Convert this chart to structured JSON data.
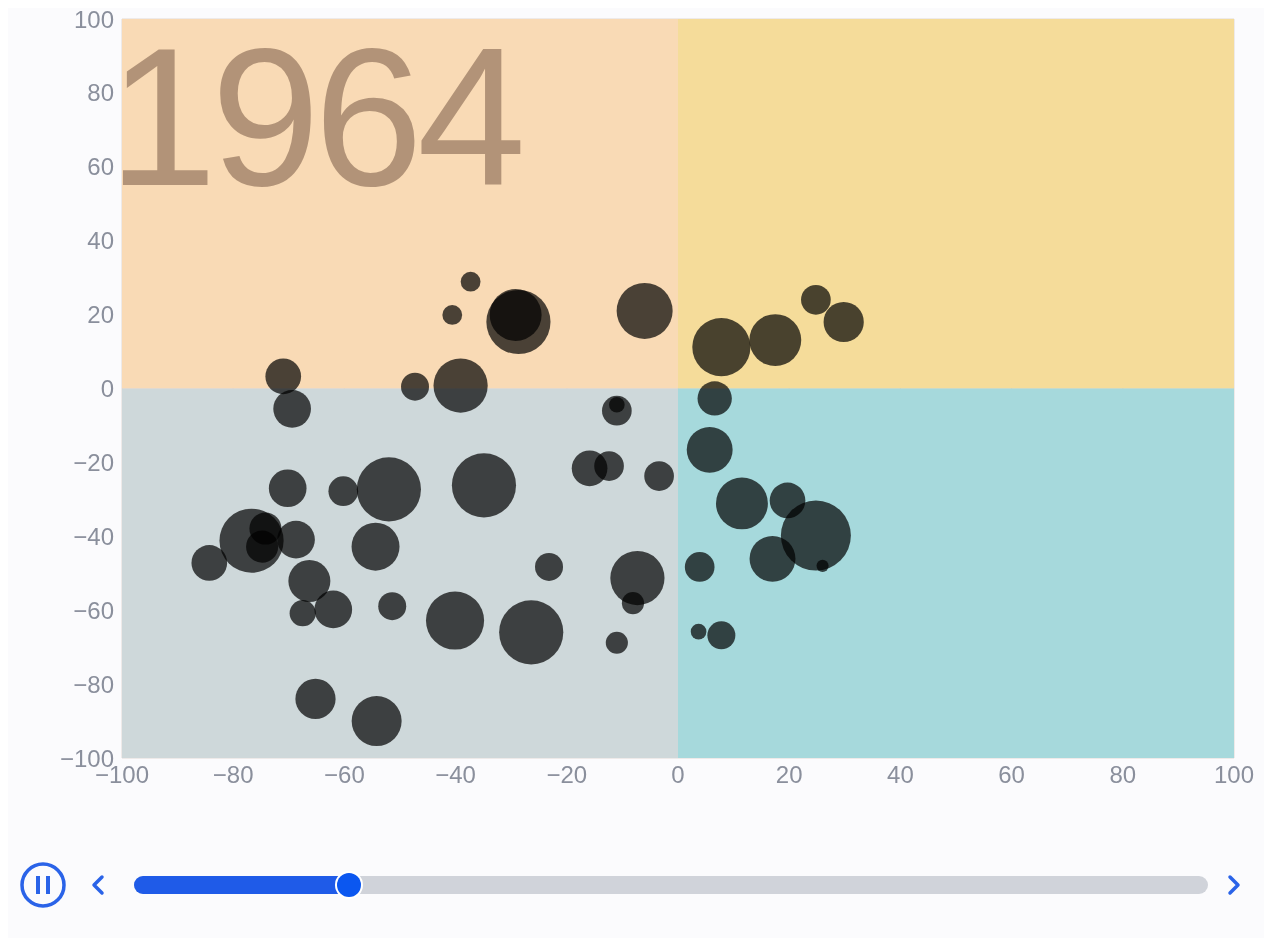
{
  "chart_data": {
    "type": "bubble",
    "annotations": [
      "1964"
    ],
    "x": [
      -37.3,
      -40.6,
      -28.7,
      -29.2,
      -6.0,
      -71.0,
      -47.3,
      -39.1,
      -69.4,
      -11.0,
      -11.0,
      -15.9,
      -12.4,
      -3.4,
      -70.2,
      -60.2,
      -52.0,
      -34.9,
      -76.7,
      -74.2,
      -74.8,
      -68.7,
      -84.3,
      -54.4,
      -66.3,
      -67.5,
      -62.0,
      -51.4,
      -40.1,
      -26.4,
      -23.2,
      -7.3,
      -8.1,
      -11.0,
      -65.2,
      -54.2,
      7.8,
      17.5,
      24.8,
      29.8,
      6.6,
      5.7,
      11.5,
      19.7,
      24.8,
      17.0,
      3.9,
      26.0,
      3.7,
      7.8
    ],
    "series": [
      {
        "color": "#000000",
        "values": [
          28.9,
          19.9,
          18.0,
          19.9,
          21.0,
          3.3,
          0.5,
          0.8,
          -5.5,
          -6.0,
          -4.4,
          -21.6,
          -21.0,
          -23.7,
          -27.0,
          -27.8,
          -27.3,
          -26.2,
          -41.2,
          -37.9,
          -42.8,
          -40.9,
          -47.2,
          -42.8,
          -52.1,
          -60.8,
          -59.8,
          -58.9,
          -62.8,
          -66.0,
          -48.3,
          -51.3,
          -58.1,
          -68.8,
          -84.0,
          -90.0,
          11.2,
          13.1,
          24.0,
          18.0,
          -2.7,
          -16.6,
          -31.1,
          -30.3,
          -39.8,
          -46.1,
          -48.3,
          -48.0,
          -65.8,
          -66.8
        ],
        "sizes": [
          0.08,
          0.08,
          0.84,
          0.55,
          0.64,
          0.26,
          0.16,
          0.6,
          0.29,
          0.18,
          0.05,
          0.26,
          0.18,
          0.18,
          0.29,
          0.18,
          0.84,
          0.84,
          0.84,
          0.21,
          0.21,
          0.29,
          0.26,
          0.47,
          0.36,
          0.14,
          0.29,
          0.16,
          0.69,
          0.84,
          0.16,
          0.6,
          0.1,
          0.1,
          0.33,
          0.51,
          0.69,
          0.55,
          0.18,
          0.33,
          0.24,
          0.43,
          0.55,
          0.26,
          1,
          0.43,
          0.18,
          0.03,
          0.05,
          0.16
        ]
      }
    ],
    "xlim": [
      -100,
      100
    ],
    "xticks": [
      {
        "value": -100,
        "label": "−100"
      },
      {
        "value": -80,
        "label": "−80"
      },
      {
        "value": -60,
        "label": "−60"
      },
      {
        "value": -40,
        "label": "−40"
      },
      {
        "value": -20,
        "label": "−20"
      },
      0,
      20,
      40,
      60,
      80,
      100
    ],
    "ylim": [
      -100,
      100
    ],
    "yticks": [
      {
        "value": -100,
        "label": "−100"
      },
      {
        "value": -80,
        "label": "−80"
      },
      {
        "value": -60,
        "label": "−60"
      },
      {
        "value": -40,
        "label": "−40"
      },
      {
        "value": -20,
        "label": "−20"
      },
      0,
      20,
      40,
      60,
      80,
      100
    ],
    "bands": [
      {
        "axis": "y",
        "from": 0,
        "to": 100,
        "color": "#f5dc9a"
      },
      {
        "axis": "y",
        "from": -100,
        "to": 0,
        "color": "#a6d9dc"
      },
      {
        "axis": "x",
        "from": -100,
        "to": 0,
        "color": "#ffd8d8"
      }
    ],
    "grid": true,
    "marker": "circle"
  }
}
